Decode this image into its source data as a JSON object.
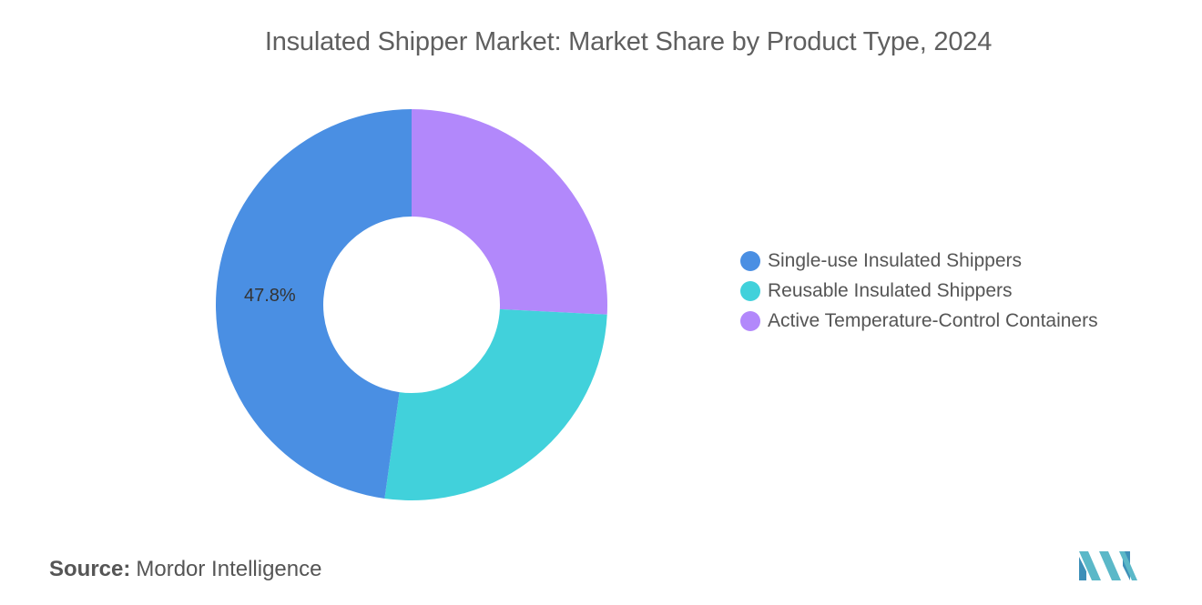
{
  "chart_data": {
    "type": "pie",
    "style": "donut",
    "title": "Insulated Shipper Market: Market Share by Product Type, 2024",
    "categories": [
      "Single-use Insulated Shippers",
      "Reusable Insulated Shippers",
      "Active Temperature-Control Containers"
    ],
    "values": [
      47.8,
      26.4,
      25.8
    ],
    "colors": [
      "#4a8fe3",
      "#41d1db",
      "#b288fb"
    ],
    "data_labels": [
      "47.8%",
      "",
      ""
    ],
    "legend_position": "right"
  },
  "source": {
    "label": "Source:",
    "value": "Mordor Intelligence"
  },
  "logo": {
    "icon": "mordor-intelligence-logo",
    "color": "#5bb8c8"
  }
}
